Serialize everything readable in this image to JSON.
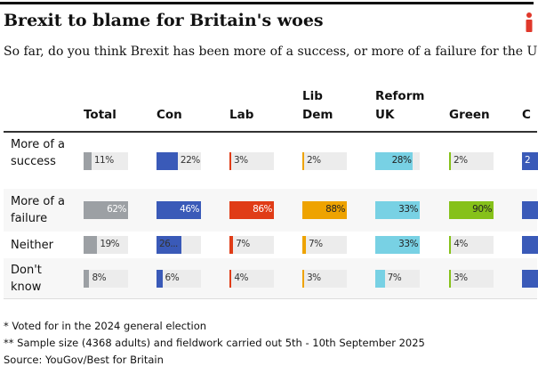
{
  "title": "Brexit to blame for Britain's woes",
  "subtitle": "So far, do you think Brexit has been more of a success, or more of a failure for the UK?",
  "logo": "i",
  "notes": [
    "* Voted for in the 2024 general election",
    "** Sample size (4368 adults) and fieldwork carried out 5th - 10th September 2025",
    "Source: YouGov/Best for Britain"
  ],
  "chart_data": {
    "type": "table",
    "columns": [
      {
        "label": "Total",
        "color": "#9ca0a4",
        "text": "#fff"
      },
      {
        "label": "Con",
        "color": "#3a5ab8",
        "text": "#fff"
      },
      {
        "label": "Lab",
        "color": "#e03c17",
        "text": "#fff"
      },
      {
        "label": "Lib\nDem",
        "color": "#eea300",
        "text": "#222"
      },
      {
        "label": "Reform\nUK",
        "color": "#78d1e4",
        "text": "#222"
      },
      {
        "label": "Green",
        "color": "#86c11a",
        "text": "#222"
      },
      {
        "label": "C",
        "color": "#3a5ab8",
        "text": "#fff"
      }
    ],
    "rows": [
      {
        "label": "More of a success",
        "values": [
          11,
          22,
          3,
          2,
          28,
          2,
          null
        ],
        "labels": [
          "11%",
          "22%",
          "3%",
          "2%",
          "28%",
          "2%",
          "2"
        ]
      },
      {
        "label": "More of a failure",
        "values": [
          62,
          46,
          86,
          88,
          33,
          90,
          null
        ],
        "labels": [
          "62%",
          "46%",
          "86%",
          "88%",
          "33%",
          "90%",
          ""
        ]
      },
      {
        "label": "Neither",
        "values": [
          19,
          26,
          7,
          7,
          33,
          4,
          null
        ],
        "labels": [
          "19%",
          "26...",
          "7%",
          "7%",
          "33%",
          "4%",
          ""
        ]
      },
      {
        "label": "Don't know",
        "values": [
          8,
          6,
          4,
          3,
          7,
          3,
          null
        ],
        "labels": [
          "8%",
          "6%",
          "4%",
          "3%",
          "7%",
          "3%",
          ""
        ]
      }
    ]
  }
}
